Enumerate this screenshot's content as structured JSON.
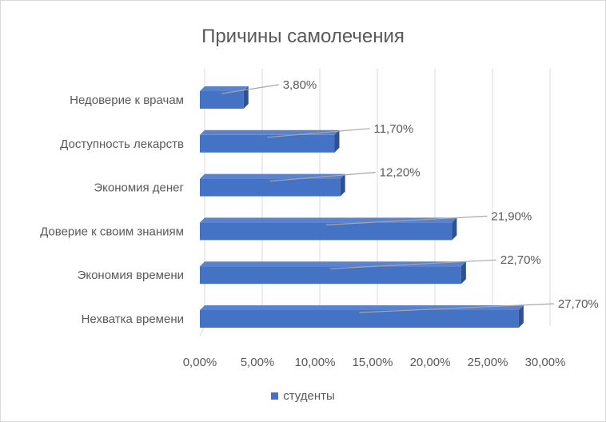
{
  "chart_data": {
    "type": "bar",
    "orientation": "horizontal",
    "style": "3d-clustered",
    "title": "Причины самолечения",
    "categories": [
      "Недоверие к врачам",
      "Доступность лекарств",
      "Экономия денег",
      "Доверие к своим знаниям",
      "Экономия времени",
      "Нехватка времени"
    ],
    "series": [
      {
        "name": "студенты",
        "values": [
          3.8,
          11.7,
          12.2,
          21.9,
          22.7,
          27.7
        ],
        "data_labels": [
          "3,80%",
          "11,70%",
          "12,20%",
          "21,90%",
          "22,70%",
          "27,70%"
        ]
      }
    ],
    "x_ticks": [
      "0,00%",
      "5,00%",
      "10,00%",
      "15,00%",
      "20,00%",
      "25,00%",
      "30,00%"
    ],
    "xlim": [
      0,
      30
    ],
    "grid": true,
    "legend_position": "bottom",
    "colors": {
      "bar": "#4472c4",
      "bar_top": "#5b82cc",
      "bar_side": "#2f528f",
      "grid": "#d9d9d9",
      "text": "#595959",
      "leader": "#a6a6a6"
    }
  }
}
